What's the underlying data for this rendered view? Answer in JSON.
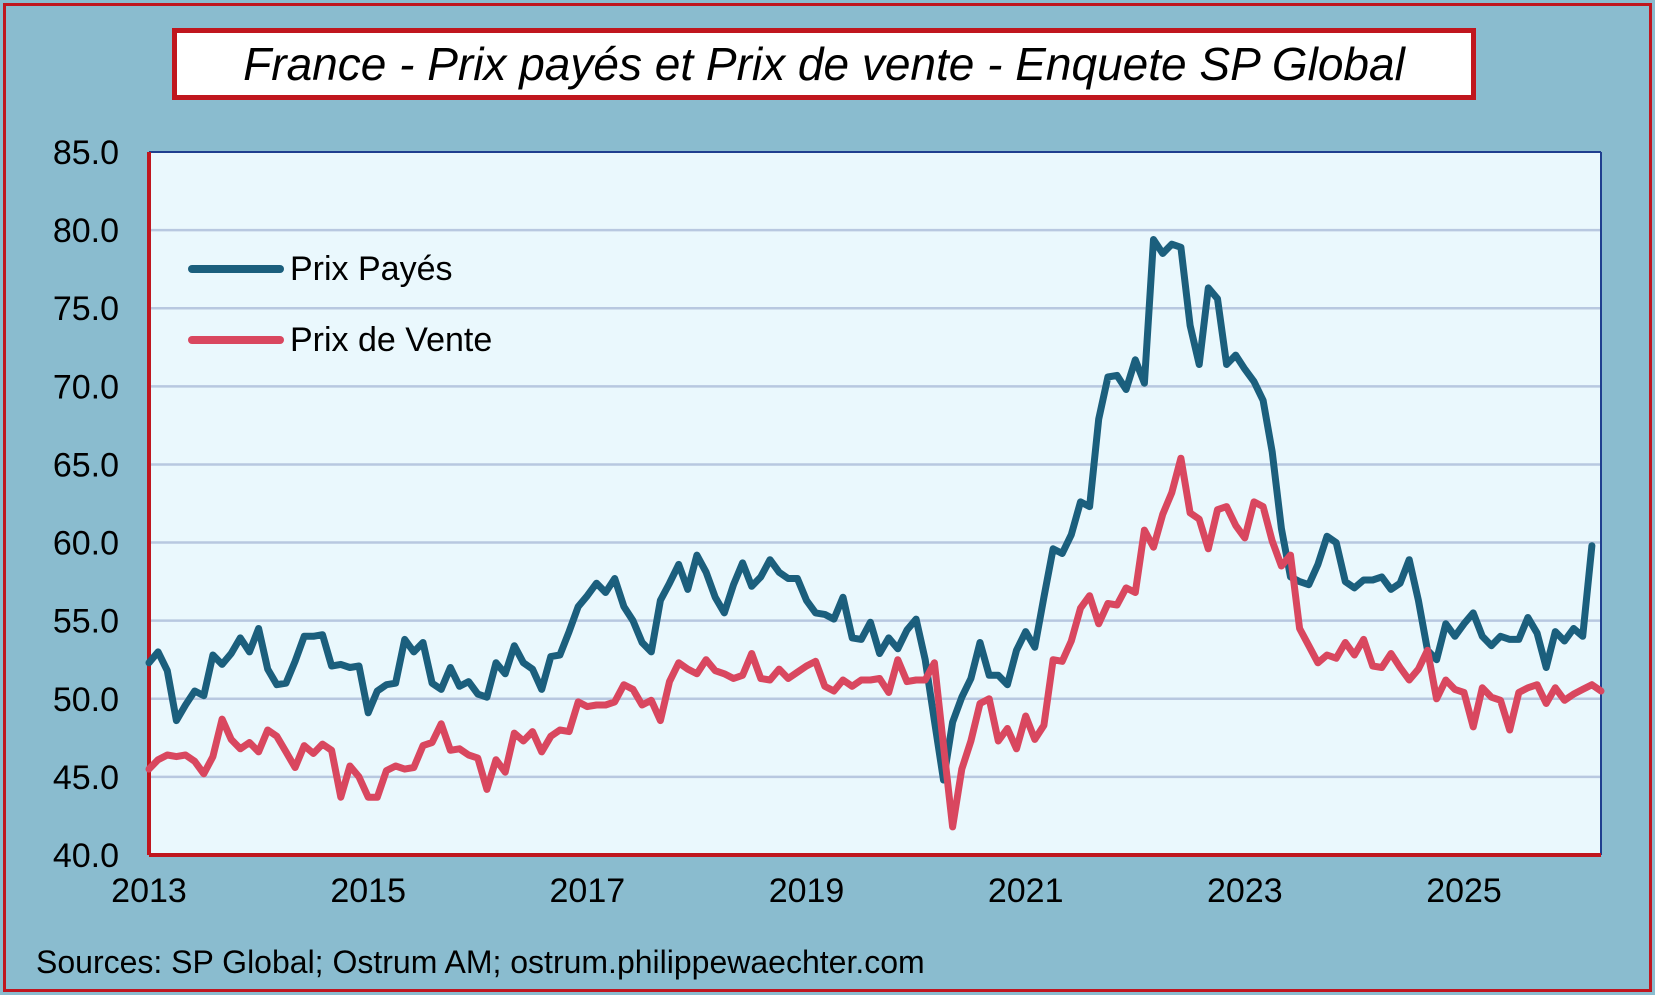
{
  "chart_data": {
    "type": "line",
    "title": "France - Prix payés et Prix de vente - Enquete SP Global",
    "source": "Sources: SP Global; Ostrum AM; ostrum.philippewaechter.com",
    "xlim": [
      2013.0,
      2026.25
    ],
    "ylim": [
      40,
      85
    ],
    "x_ticks": [
      2013,
      2015,
      2017,
      2019,
      2021,
      2023,
      2025
    ],
    "x_tick_labels": [
      "2013",
      "2015",
      "2017",
      "2019",
      "2021",
      "2023",
      "2025"
    ],
    "y_ticks": [
      40,
      45,
      50,
      55,
      60,
      65,
      70,
      75,
      80,
      85
    ],
    "y_tick_labels": [
      "40.0",
      "45.0",
      "50.0",
      "55.0",
      "60.0",
      "65.0",
      "70.0",
      "75.0",
      "80.0",
      "85.0"
    ],
    "grid": "horizontal",
    "legend_position": "top-left",
    "colors": {
      "plot_bg": "#eaf8fd",
      "frame": "#c0161e",
      "outer_bg": "#8abccf",
      "grid": "#b8c8e0",
      "axis": "#1f3f8f"
    },
    "x_frequency": "monthly",
    "x_start": "2013-01",
    "series": [
      {
        "name": "Prix Payés",
        "color": "#1b5f7d",
        "values": [
          52.3,
          53.0,
          51.8,
          48.6,
          49.6,
          50.5,
          50.2,
          52.8,
          52.2,
          52.9,
          53.9,
          53.0,
          54.5,
          51.9,
          50.9,
          51.0,
          52.4,
          54.0,
          54.0,
          54.1,
          52.1,
          52.2,
          52.0,
          52.1,
          49.1,
          50.5,
          50.9,
          51.0,
          53.8,
          53.0,
          53.6,
          51.0,
          50.6,
          52.0,
          50.8,
          51.1,
          50.3,
          50.1,
          52.3,
          51.6,
          53.4,
          52.3,
          51.9,
          50.6,
          52.7,
          52.8,
          54.3,
          55.9,
          56.6,
          57.4,
          56.8,
          57.7,
          55.9,
          55.0,
          53.6,
          53.0,
          56.3,
          57.4,
          58.6,
          57.0,
          59.2,
          58.1,
          56.5,
          55.5,
          57.3,
          58.7,
          57.2,
          57.8,
          58.9,
          58.1,
          57.7,
          57.7,
          56.3,
          55.5,
          55.4,
          55.1,
          56.5,
          53.9,
          53.8,
          54.9,
          52.9,
          53.9,
          53.2,
          54.4,
          55.1,
          52.5,
          48.6,
          44.8,
          48.5,
          50.1,
          51.3,
          53.6,
          51.5,
          51.5,
          50.9,
          53.1,
          54.3,
          53.3,
          56.5,
          59.6,
          59.3,
          60.5,
          62.6,
          62.3,
          67.9,
          70.6,
          70.7,
          69.8,
          71.7,
          70.2,
          79.4,
          78.5,
          79.1,
          78.9,
          73.9,
          71.4,
          76.3,
          75.6,
          71.4,
          72.0,
          71.1,
          70.3,
          69.1,
          65.8,
          60.9,
          57.8,
          57.5,
          57.3,
          58.6,
          60.4,
          60.0,
          57.5,
          57.1,
          57.6,
          57.6,
          57.8,
          57.0,
          57.4,
          58.9,
          56.3,
          53.1,
          52.5,
          54.8,
          54.0,
          54.8,
          55.5,
          54.0,
          53.4,
          54.0,
          53.8,
          53.8,
          55.2,
          54.2,
          52.0,
          54.3,
          53.7,
          54.5,
          54.0,
          59.8
        ]
      },
      {
        "name": "Prix de Vente",
        "color": "#d9475f",
        "values": [
          45.5,
          46.1,
          46.4,
          46.3,
          46.4,
          46.0,
          45.2,
          46.3,
          48.7,
          47.4,
          46.8,
          47.2,
          46.6,
          48.0,
          47.6,
          46.6,
          45.6,
          47.0,
          46.5,
          47.1,
          46.7,
          43.7,
          45.7,
          45.0,
          43.7,
          43.7,
          45.4,
          45.7,
          45.5,
          45.6,
          47.0,
          47.2,
          48.4,
          46.7,
          46.8,
          46.4,
          46.2,
          44.2,
          46.1,
          45.3,
          47.8,
          47.3,
          47.9,
          46.6,
          47.6,
          48.0,
          47.9,
          49.8,
          49.5,
          49.6,
          49.6,
          49.8,
          50.9,
          50.6,
          49.6,
          49.9,
          48.6,
          51.1,
          52.3,
          51.9,
          51.6,
          52.5,
          51.8,
          51.6,
          51.3,
          51.5,
          52.9,
          51.3,
          51.2,
          51.9,
          51.3,
          51.7,
          52.1,
          52.4,
          50.8,
          50.5,
          51.2,
          50.8,
          51.2,
          51.2,
          51.3,
          50.4,
          52.5,
          51.1,
          51.2,
          51.2,
          52.3,
          47.0,
          41.8,
          45.5,
          47.3,
          49.7,
          50.0,
          47.3,
          48.1,
          46.8,
          48.9,
          47.4,
          48.3,
          52.5,
          52.4,
          53.7,
          55.8,
          56.6,
          54.8,
          56.1,
          56.0,
          57.1,
          56.8,
          60.8,
          59.7,
          61.8,
          63.2,
          65.4,
          61.9,
          61.5,
          59.6,
          62.1,
          62.3,
          61.1,
          60.3,
          62.6,
          62.3,
          60.1,
          58.5,
          59.2,
          54.5,
          53.4,
          52.3,
          52.8,
          52.6,
          53.6,
          52.8,
          53.8,
          52.1,
          52.0,
          52.9,
          52.0,
          51.2,
          51.9,
          53.1,
          50.0,
          51.2,
          50.6,
          50.4,
          48.2,
          50.7,
          50.1,
          49.9,
          48.0,
          50.4,
          50.7,
          50.9,
          49.7,
          50.7,
          49.9,
          50.3,
          50.6,
          50.9,
          50.5
        ]
      }
    ]
  },
  "legend": {
    "items": [
      "Prix Payés",
      "Prix de Vente"
    ]
  }
}
